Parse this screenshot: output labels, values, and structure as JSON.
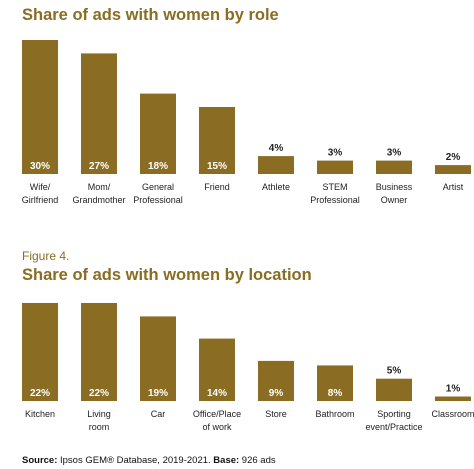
{
  "colors": {
    "bar": "#8a6d22",
    "title": "#8a6d22",
    "value_inside": "#ffffff",
    "value_outside": "#222222"
  },
  "figure_label": "Figure 4.",
  "chart_data": [
    {
      "type": "bar",
      "title": "Share of ads with women by role",
      "categories": [
        "Wife/\nGirlfriend",
        "Mom/\nGrandmother",
        "General\nProfessional",
        "Friend",
        "Athlete",
        "STEM\nProfessional",
        "Business\nOwner",
        "Artist"
      ],
      "values": [
        30,
        27,
        18,
        15,
        4,
        3,
        3,
        2
      ],
      "value_labels": [
        "30%",
        "27%",
        "18%",
        "15%",
        "4%",
        "3%",
        "3%",
        "2%"
      ],
      "unit": "%",
      "ylim": [
        0,
        30
      ],
      "grid": false,
      "legend": "none"
    },
    {
      "type": "bar",
      "title": "Share of ads with women by location",
      "categories": [
        "Kitchen",
        "Living\nroom",
        "Car",
        "Office/Place\nof work",
        "Store",
        "Bathroom",
        "Sporting\nevent/Practice",
        "Classroom"
      ],
      "values": [
        22,
        22,
        19,
        14,
        9,
        8,
        5,
        1
      ],
      "value_labels": [
        "22%",
        "22%",
        "19%",
        "14%",
        "9%",
        "8%",
        "5%",
        "1%"
      ],
      "unit": "%",
      "ylim": [
        0,
        22
      ],
      "grid": false,
      "legend": "none"
    }
  ],
  "source": {
    "label": "Source:",
    "text": " Ipsos GEM® Database, 2019-2021.",
    "base_label": "Base:",
    "base_text": " 926 ads"
  }
}
